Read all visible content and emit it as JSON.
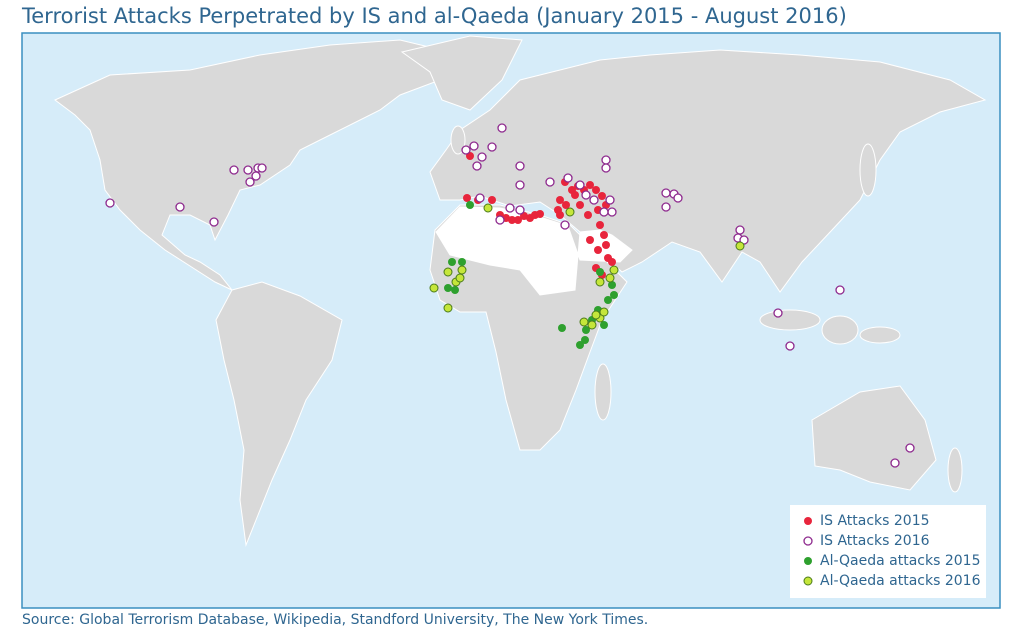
{
  "title": "Terrorist Attacks Perpetrated by IS and al-Qaeda (January 2015 - August 2016)",
  "source": "Source: Global Terrorism Database, Wikipedia, Standford University, The New York Times.",
  "legend": [
    {
      "label": "IS Attacks 2015",
      "color": "#e8253c",
      "style": "filled"
    },
    {
      "label": "IS Attacks 2016",
      "color": "#8e2a8e",
      "style": "hollow"
    },
    {
      "label": "Al-Qaeda attacks 2015",
      "color": "#2ea02e",
      "style": "filled"
    },
    {
      "label": "Al-Qaeda attacks 2016",
      "color": "#c5e63a",
      "style": "outlined"
    }
  ]
}
